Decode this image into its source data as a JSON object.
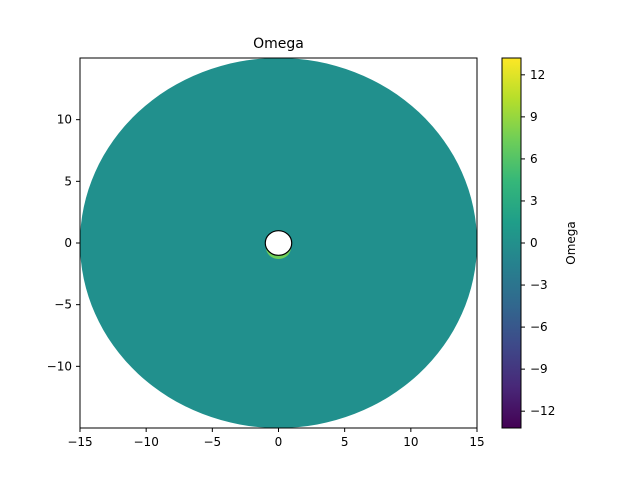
{
  "chart_data": {
    "type": "heatmap",
    "title": "Omega",
    "xlim": [
      -15,
      15
    ],
    "ylim": [
      -15,
      15
    ],
    "x_ticks": [
      -15,
      -10,
      -5,
      0,
      5,
      10,
      15
    ],
    "x_tick_labels": [
      "−15",
      "−10",
      "−5",
      "0",
      "5",
      "10",
      "15"
    ],
    "y_ticks": [
      -10,
      -5,
      0,
      5,
      10
    ],
    "y_tick_labels": [
      "−10",
      "−5",
      "0",
      "5",
      "10"
    ],
    "domain": {
      "shape": "annulus",
      "outer_radius": 15,
      "inner_radius": 1
    },
    "field_value_bulk": 0,
    "hotspot_near_cylinder": {
      "value": 6,
      "location": "just below the inner circle"
    },
    "colorbar": {
      "label": "Omega",
      "colormap": "viridis",
      "range": [
        -13.2,
        13.2
      ],
      "ticks": [
        -12,
        -9,
        -6,
        -3,
        0,
        3,
        6,
        9,
        12
      ],
      "tick_labels": [
        "−12",
        "−9",
        "−6",
        "−3",
        "0",
        "3",
        "6",
        "9",
        "12"
      ]
    },
    "colors": {
      "bulk": "#21908d",
      "viridis": [
        "#440154",
        "#482878",
        "#3e4989",
        "#31688e",
        "#26828e",
        "#1f9e89",
        "#35b779",
        "#6ece58",
        "#b5de2b",
        "#fde725"
      ]
    }
  }
}
